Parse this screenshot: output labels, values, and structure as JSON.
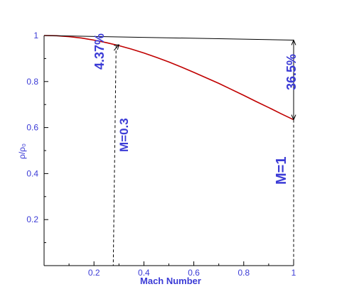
{
  "chart_data": {
    "type": "line",
    "xlabel": "Mach Number",
    "ylabel": "ρ/ρ₀",
    "xlim": [
      0,
      1
    ],
    "ylim": [
      0,
      1
    ],
    "x_ticks": [
      0.2,
      0.4,
      0.6,
      0.8,
      1
    ],
    "x_tick_labels": [
      "0.2",
      "0.4",
      "0.6",
      "0.8",
      "1"
    ],
    "y_ticks": [
      0.2,
      0.4,
      0.6,
      0.8,
      1
    ],
    "y_tick_labels": [
      "0.2",
      "0.4",
      "0.6",
      "0.8",
      "1"
    ],
    "grid": false,
    "series": [
      {
        "color": "#c00000",
        "x": [
          0,
          0.05,
          0.1,
          0.15,
          0.2,
          0.25,
          0.3,
          0.35,
          0.4,
          0.45,
          0.5,
          0.55,
          0.6,
          0.65,
          0.7,
          0.75,
          0.8,
          0.85,
          0.9,
          0.95,
          1
        ],
        "y": [
          1,
          0.999,
          0.995,
          0.989,
          0.98,
          0.969,
          0.956,
          0.941,
          0.924,
          0.905,
          0.885,
          0.863,
          0.84,
          0.816,
          0.792,
          0.766,
          0.74,
          0.713,
          0.687,
          0.66,
          0.634
        ]
      },
      {
        "color": "#000000",
        "x": [
          0,
          1
        ],
        "y": [
          1,
          0.98
        ]
      }
    ],
    "annotations": [
      {
        "text": "4.37%",
        "x_anchor": 0.3
      },
      {
        "text": "36.5%",
        "x_anchor": 1
      },
      {
        "text": "M=0.3",
        "x_anchor": 0.3
      },
      {
        "text": "M=1",
        "x_anchor": 1
      }
    ],
    "colors": {
      "axis": "#000000",
      "text": "#3b3bd6",
      "curve": "#c00000"
    }
  }
}
